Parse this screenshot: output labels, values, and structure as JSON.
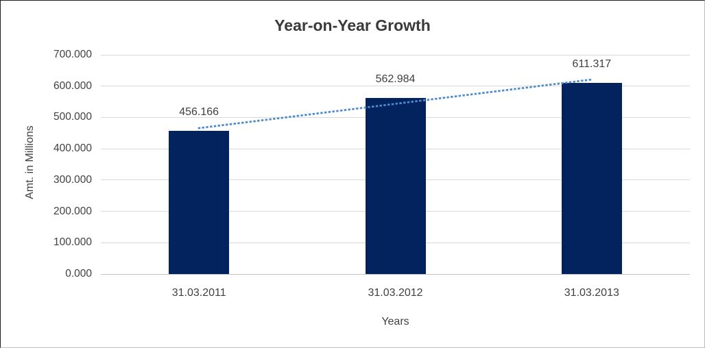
{
  "chart_data": {
    "type": "bar",
    "title": "Year-on-Year Growth",
    "xlabel": "Years",
    "ylabel": "Amt. in Millions",
    "categories": [
      "31.03.2011",
      "31.03.2012",
      "31.03.2013"
    ],
    "values": [
      456.166,
      562.984,
      611.317
    ],
    "value_labels": [
      "456.166",
      "562.984",
      "611.317"
    ],
    "ylim": [
      0,
      700
    ],
    "ytick_step": 100,
    "ytick_labels": [
      "0.000",
      "100.000",
      "200.000",
      "300.000",
      "400.000",
      "500.000",
      "600.000",
      "700.000"
    ],
    "grid": true,
    "legend": false,
    "trendline": {
      "type": "linear",
      "style": "dotted",
      "color": "#4e8bcc"
    },
    "colors": {
      "bar": "#03235f",
      "gridline": "#d9d9d9",
      "zero_line": "#c3c3c3",
      "text": "#3f3f3f",
      "title": "#3a3a3a"
    }
  }
}
